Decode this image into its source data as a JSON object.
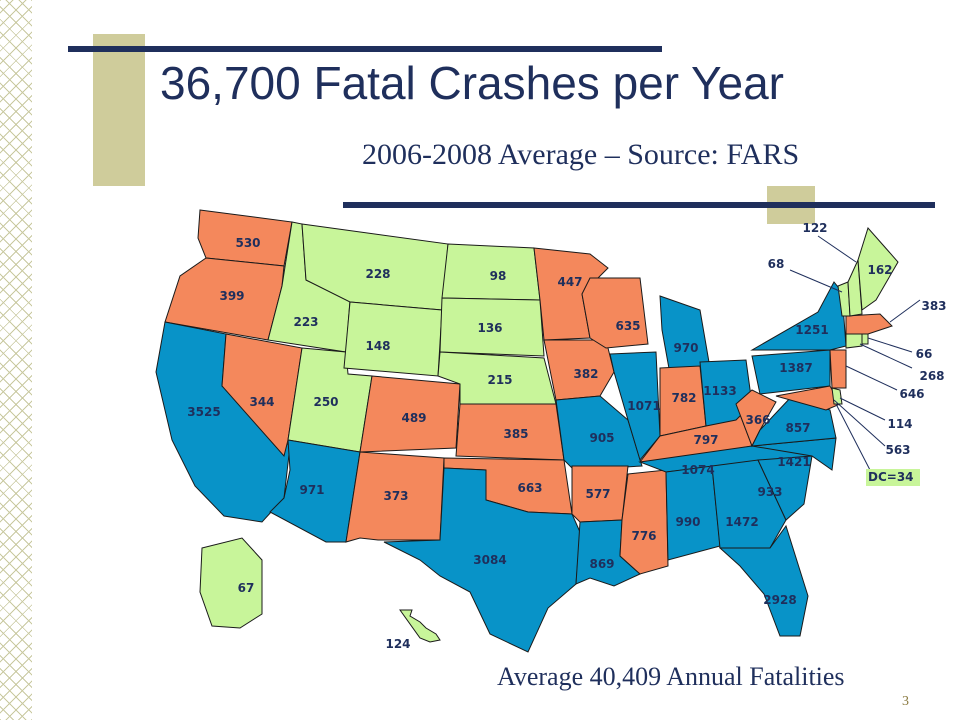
{
  "title": "36,700 Fatal Crashes per Year",
  "subtitle": "2006-2008 Average – Source: FARS",
  "footer": "Average 40,409 Annual Fatalities",
  "page_number": "3",
  "colors": {
    "title": "#1f2f5c",
    "blue": "#0893c8",
    "orange": "#f4885c",
    "green": "#c8f59a",
    "label": "#1f2f5c",
    "tan": "#cfcc9b"
  },
  "dc_label": "DC=34",
  "states": [
    {
      "state": "WA",
      "value": "530",
      "color": "orange"
    },
    {
      "state": "OR",
      "value": "399",
      "color": "orange"
    },
    {
      "state": "CA",
      "value": "3525",
      "color": "blue"
    },
    {
      "state": "ID",
      "value": "223",
      "color": "green"
    },
    {
      "state": "NV",
      "value": "344",
      "color": "orange"
    },
    {
      "state": "UT",
      "value": "250",
      "color": "green"
    },
    {
      "state": "AZ",
      "value": "971",
      "color": "blue"
    },
    {
      "state": "MT",
      "value": "228",
      "color": "green"
    },
    {
      "state": "WY",
      "value": "148",
      "color": "green"
    },
    {
      "state": "CO",
      "value": "489",
      "color": "orange"
    },
    {
      "state": "NM",
      "value": "373",
      "color": "orange"
    },
    {
      "state": "ND",
      "value": "98",
      "color": "green"
    },
    {
      "state": "SD",
      "value": "136",
      "color": "green"
    },
    {
      "state": "NE",
      "value": "215",
      "color": "green"
    },
    {
      "state": "KS",
      "value": "385",
      "color": "orange"
    },
    {
      "state": "OK",
      "value": "663",
      "color": "orange"
    },
    {
      "state": "TX",
      "value": "3084",
      "color": "blue"
    },
    {
      "state": "MN",
      "value": "447",
      "color": "orange"
    },
    {
      "state": "IA",
      "value": "382",
      "color": "orange"
    },
    {
      "state": "MO",
      "value": "905",
      "color": "blue"
    },
    {
      "state": "AR",
      "value": "577",
      "color": "orange"
    },
    {
      "state": "LA",
      "value": "869",
      "color": "blue"
    },
    {
      "state": "WI",
      "value": "635",
      "color": "orange"
    },
    {
      "state": "IL",
      "value": "1071",
      "color": "blue"
    },
    {
      "state": "MS",
      "value": "776",
      "color": "orange"
    },
    {
      "state": "MI",
      "value": "970",
      "color": "blue"
    },
    {
      "state": "IN",
      "value": "782",
      "color": "orange"
    },
    {
      "state": "KY",
      "value": "797",
      "color": "orange"
    },
    {
      "state": "TN",
      "value": "1074",
      "color": "blue"
    },
    {
      "state": "AL",
      "value": "990",
      "color": "blue"
    },
    {
      "state": "OH",
      "value": "1133",
      "color": "blue"
    },
    {
      "state": "WV",
      "value": "366",
      "color": "orange"
    },
    {
      "state": "GA",
      "value": "1472",
      "color": "blue"
    },
    {
      "state": "FL",
      "value": "2928",
      "color": "blue"
    },
    {
      "state": "SC",
      "value": "933",
      "color": "blue"
    },
    {
      "state": "NC",
      "value": "1421",
      "color": "blue"
    },
    {
      "state": "VA",
      "value": "857",
      "color": "blue"
    },
    {
      "state": "PA",
      "value": "1387",
      "color": "blue"
    },
    {
      "state": "NY",
      "value": "1251",
      "color": "blue"
    },
    {
      "state": "ME",
      "value": "162",
      "color": "green"
    },
    {
      "state": "NH",
      "value": "122",
      "color": "green"
    },
    {
      "state": "VT",
      "value": "68",
      "color": "green"
    },
    {
      "state": "MA",
      "value": "383",
      "color": "orange"
    },
    {
      "state": "RI",
      "value": "66",
      "color": "green"
    },
    {
      "state": "CT",
      "value": "268",
      "color": "green"
    },
    {
      "state": "NJ",
      "value": "646",
      "color": "orange"
    },
    {
      "state": "DE",
      "value": "114",
      "color": "green"
    },
    {
      "state": "MD",
      "value": "563",
      "color": "orange"
    },
    {
      "state": "AK",
      "value": "67",
      "color": "green"
    },
    {
      "state": "HI",
      "value": "124",
      "color": "green"
    }
  ]
}
